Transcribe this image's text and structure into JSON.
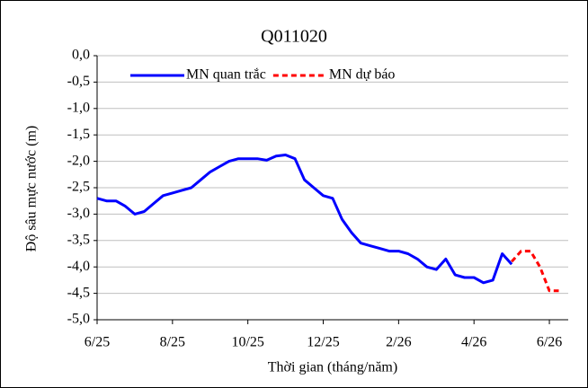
{
  "chart_data": {
    "type": "line",
    "title": "Q011020",
    "x_label": "Thời gian (tháng/năm)",
    "y_label": "Độ sâu mực nước (m)",
    "categories": [
      "6/25",
      null,
      null,
      null,
      null,
      null,
      null,
      null,
      "8/25",
      null,
      null,
      null,
      null,
      null,
      null,
      null,
      "10/25",
      null,
      null,
      null,
      null,
      null,
      null,
      null,
      "12/25",
      null,
      null,
      null,
      null,
      null,
      null,
      null,
      "2/26",
      null,
      null,
      null,
      null,
      null,
      null,
      null,
      "4/26",
      null,
      null,
      null,
      null,
      null,
      null,
      null,
      "6/26",
      null
    ],
    "series": [
      {
        "name": "MN quan trắc",
        "color": "#0000ff",
        "dash": false,
        "values": [
          -2.7,
          -2.75,
          -2.75,
          -2.85,
          -3.0,
          -2.95,
          -2.8,
          -2.65,
          -2.6,
          -2.55,
          -2.5,
          -2.35,
          -2.2,
          -2.1,
          -2.0,
          -1.95,
          -1.95,
          -1.95,
          -1.98,
          -1.9,
          -1.88,
          -1.95,
          -2.35,
          -2.5,
          -2.65,
          -2.7,
          -3.1,
          -3.35,
          -3.55,
          -3.6,
          -3.65,
          -3.7,
          -3.7,
          -3.75,
          -3.85,
          -4.0,
          -4.05,
          -3.85,
          -4.15,
          -4.2,
          -4.2,
          -4.3,
          -4.25,
          -3.75,
          -3.95,
          null,
          null,
          null,
          null,
          null
        ]
      },
      {
        "name": "MN dự báo",
        "color": "#ff0000",
        "dash": true,
        "values": [
          null,
          null,
          null,
          null,
          null,
          null,
          null,
          null,
          null,
          null,
          null,
          null,
          null,
          null,
          null,
          null,
          null,
          null,
          null,
          null,
          null,
          null,
          null,
          null,
          null,
          null,
          null,
          null,
          null,
          null,
          null,
          null,
          null,
          null,
          null,
          null,
          null,
          null,
          null,
          null,
          null,
          null,
          null,
          null,
          -3.9,
          -3.7,
          -3.7,
          -4.0,
          -4.45,
          -4.45
        ]
      }
    ],
    "ylim": [
      -5,
      0
    ],
    "yticks": [
      {
        "value": 0,
        "label": "0,0"
      },
      {
        "value": -0.5,
        "label": "-0,5"
      },
      {
        "value": -1,
        "label": "-1,0"
      },
      {
        "value": -1.5,
        "label": "-1,5"
      },
      {
        "value": -2,
        "label": "-2,0"
      },
      {
        "value": -2.5,
        "label": "-2,5"
      },
      {
        "value": -3,
        "label": "-3,0"
      },
      {
        "value": -3.5,
        "label": "-3,5"
      },
      {
        "value": -4,
        "label": "-4,0"
      },
      {
        "value": -4.5,
        "label": "-4,5"
      },
      {
        "value": -5,
        "label": "-5,0"
      }
    ],
    "grid": true,
    "legend": "top"
  }
}
